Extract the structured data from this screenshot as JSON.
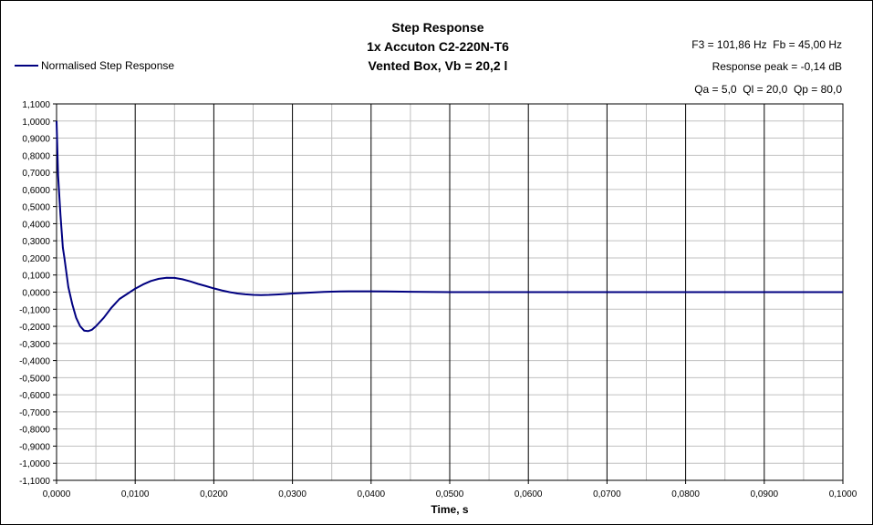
{
  "chart_data": {
    "type": "line",
    "title_lines": [
      "Step Response",
      "1x Accuton C2-220N-T6",
      "Vented Box, Vb = 20,2 l"
    ],
    "xlabel": "Time, s",
    "ylabel": "",
    "xlim": [
      0,
      0.1
    ],
    "ylim": [
      -1.1,
      1.1
    ],
    "x_ticks": [
      0,
      0.01,
      0.02,
      0.03,
      0.04,
      0.05,
      0.06,
      0.07,
      0.08,
      0.09,
      0.1
    ],
    "x_tick_labels": [
      "0,0000",
      "0,0100",
      "0,0200",
      "0,0300",
      "0,0400",
      "0,0500",
      "0,0600",
      "0,0700",
      "0,0800",
      "0,0900",
      "0,1000"
    ],
    "y_ticks": [
      1.1,
      1.0,
      0.9,
      0.8,
      0.7,
      0.6,
      0.5,
      0.4,
      0.3,
      0.2,
      0.1,
      0.0,
      -0.1,
      -0.2,
      -0.3,
      -0.4,
      -0.5,
      -0.6,
      -0.7,
      -0.8,
      -0.9,
      -1.0,
      -1.1
    ],
    "y_tick_labels": [
      "1,1000",
      "1,0000",
      "0,9000",
      "0,8000",
      "0,7000",
      "0,6000",
      "0,5000",
      "0,4000",
      "0,3000",
      "0,2000",
      "0,1000",
      "0,0000",
      "-0,1000",
      "-0,2000",
      "-0,3000",
      "-0,4000",
      "-0,5000",
      "-0,6000",
      "-0,7000",
      "-0,8000",
      "-0,9000",
      "-1,0000",
      "-1,1000"
    ],
    "grid": true,
    "legend_position": "top-left",
    "series": [
      {
        "name": "Normalised Step Response",
        "color": "#000080",
        "x": [
          0,
          0.0002,
          0.0005,
          0.0008,
          0.001,
          0.0015,
          0.002,
          0.0025,
          0.003,
          0.0035,
          0.004,
          0.0045,
          0.005,
          0.006,
          0.007,
          0.008,
          0.009,
          0.01,
          0.011,
          0.012,
          0.013,
          0.014,
          0.015,
          0.016,
          0.017,
          0.018,
          0.019,
          0.02,
          0.021,
          0.022,
          0.023,
          0.024,
          0.025,
          0.026,
          0.027,
          0.028,
          0.029,
          0.03,
          0.032,
          0.034,
          0.036,
          0.038,
          0.04,
          0.042,
          0.045,
          0.05,
          0.06,
          0.07,
          0.08,
          0.09,
          0.1
        ],
        "y": [
          1.0,
          0.68,
          0.45,
          0.26,
          0.2,
          0.03,
          -0.07,
          -0.15,
          -0.2,
          -0.225,
          -0.228,
          -0.22,
          -0.2,
          -0.15,
          -0.09,
          -0.04,
          -0.01,
          0.02,
          0.045,
          0.065,
          0.078,
          0.084,
          0.083,
          0.075,
          0.063,
          0.048,
          0.035,
          0.022,
          0.01,
          0.0,
          -0.008,
          -0.013,
          -0.016,
          -0.017,
          -0.016,
          -0.014,
          -0.011,
          -0.008,
          -0.003,
          0.001,
          0.004,
          0.005,
          0.005,
          0.004,
          0.002,
          0.0,
          0.0,
          0.0,
          0.0,
          0.0,
          0.0
        ]
      }
    ]
  },
  "info": {
    "f3_fb": "F3 = 101,86 Hz  Fb = 45,00 Hz",
    "response_peak": "Response peak = -0,14 dB",
    "q_values": "Qa = 5,0  Ql = 20,0  Qp = 80,0"
  },
  "colors": {
    "plot_background": "#ffffff",
    "grid_major": "#000000",
    "grid_minor": "#c0c0c0",
    "series": "#000080"
  }
}
